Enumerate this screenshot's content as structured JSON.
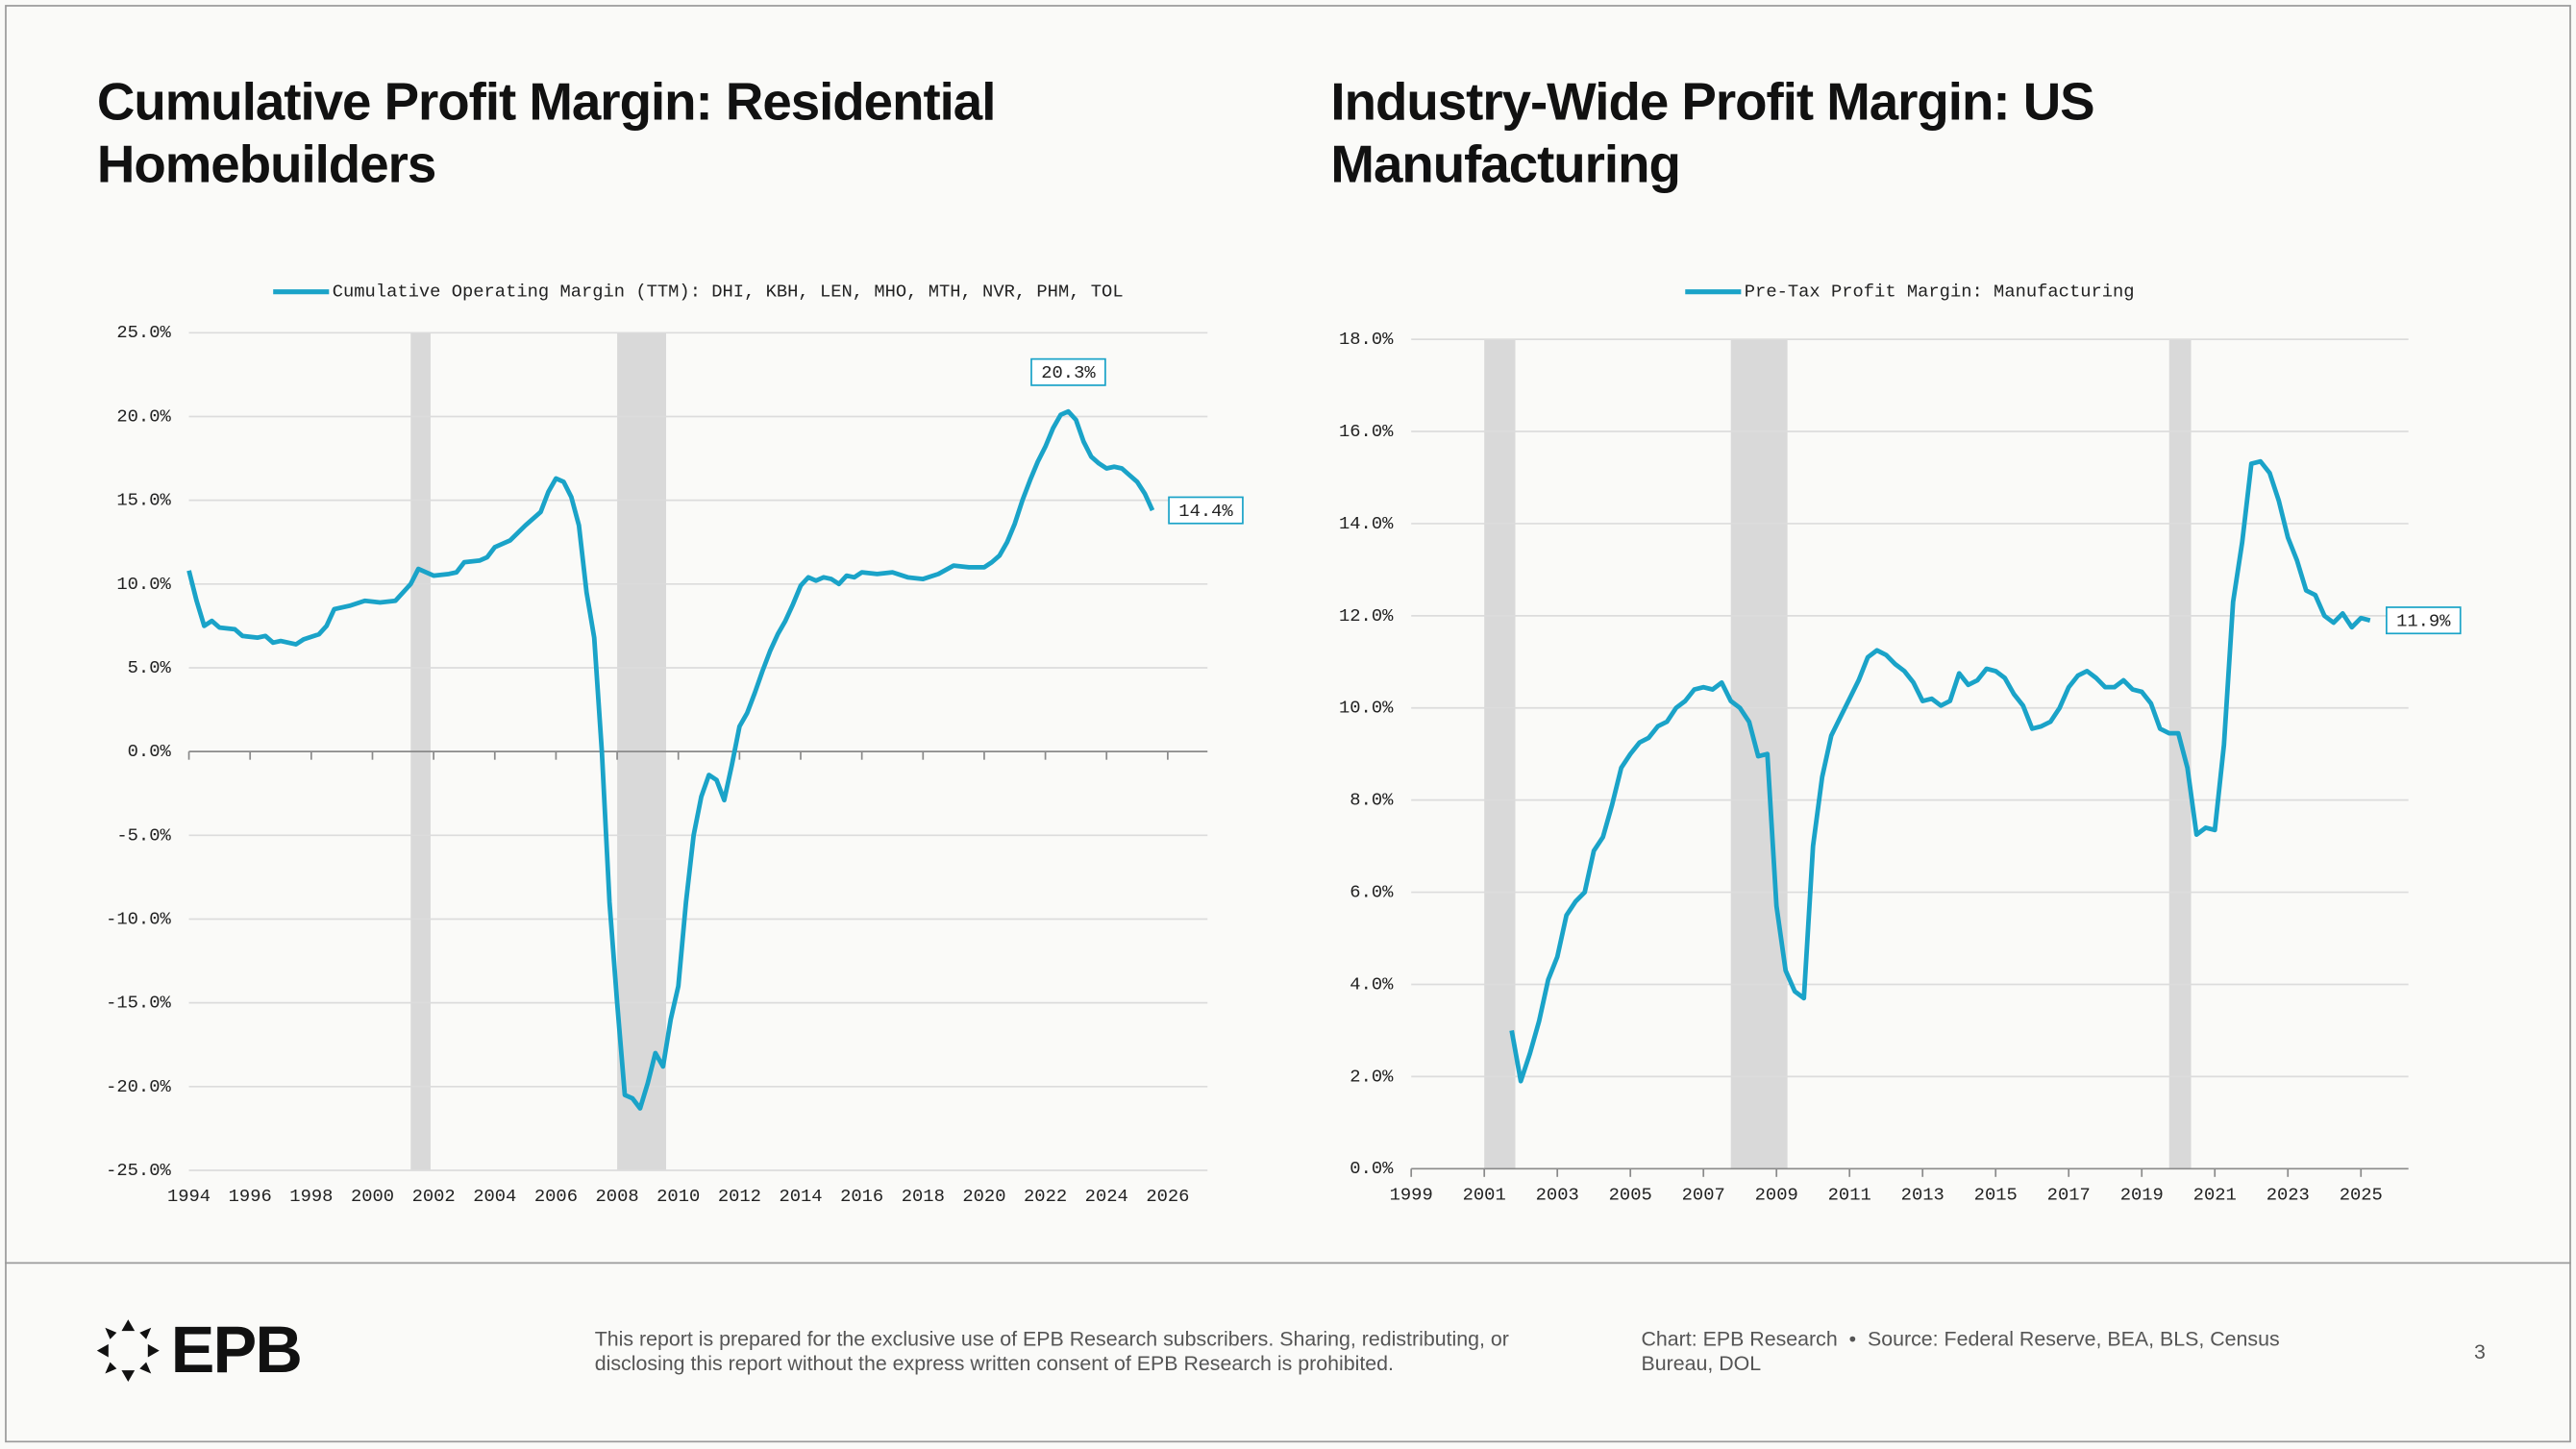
{
  "chart_data": [
    {
      "type": "line",
      "title": "Cumulative Profit Margin: Residential Homebuilders",
      "x": [
        1994,
        1994.25,
        1994.5,
        1994.75,
        1995,
        1995.5,
        1995.75,
        1996.25,
        1996.5,
        1996.75,
        1997,
        1997.5,
        1997.75,
        1998.25,
        1998.5,
        1998.75,
        1999.25,
        1999.75,
        2000.25,
        2000.75,
        2001.25,
        2001.5,
        2002,
        2002.5,
        2002.75,
        2003,
        2003.5,
        2003.75,
        2004,
        2004.5,
        2005,
        2005.5,
        2005.75,
        2006,
        2006.25,
        2006.5,
        2006.75,
        2007,
        2007.25,
        2007.5,
        2007.75,
        2008,
        2008.25,
        2008.5,
        2008.75,
        2009,
        2009.25,
        2009.5,
        2009.75,
        2010,
        2010.25,
        2010.5,
        2010.75,
        2011,
        2011.25,
        2011.5,
        2011.75,
        2012,
        2012.25,
        2012.5,
        2012.75,
        2013,
        2013.25,
        2013.5,
        2013.75,
        2014,
        2014.25,
        2014.5,
        2014.75,
        2015,
        2015.25,
        2015.5,
        2015.75,
        2016,
        2016.5,
        2017,
        2017.5,
        2018,
        2018.5,
        2019,
        2019.5,
        2020,
        2020.25,
        2020.5,
        2020.75,
        2021,
        2021.25,
        2021.5,
        2021.75,
        2022,
        2022.25,
        2022.5,
        2022.75,
        2023,
        2023.25,
        2023.5,
        2023.75,
        2024,
        2024.25,
        2024.5,
        2024.75,
        2025,
        2025.25,
        2025.5
      ],
      "series": [
        {
          "name": "Cumulative Operating Margin (TTM): DHI, KBH, LEN, MHO, MTH, NVR, PHM, TOL",
          "color": "#1aa3c8",
          "values": [
            10.8,
            9.0,
            7.5,
            7.8,
            7.4,
            7.3,
            6.9,
            6.8,
            6.9,
            6.5,
            6.6,
            6.4,
            6.7,
            7.0,
            7.5,
            8.5,
            8.7,
            9.0,
            8.9,
            9.0,
            10.0,
            10.9,
            10.5,
            10.6,
            10.7,
            11.3,
            11.4,
            11.6,
            12.2,
            12.6,
            13.5,
            14.3,
            15.5,
            16.3,
            16.1,
            15.2,
            13.5,
            9.5,
            6.8,
            0,
            -9,
            -15,
            -20.5,
            -20.7,
            -21.3,
            -19.8,
            -18.0,
            -18.8,
            -16.0,
            -14.0,
            -9.0,
            -5.0,
            -2.7,
            -1.4,
            -1.7,
            -2.9,
            -0.8,
            1.5,
            2.3,
            3.5,
            4.8,
            6.0,
            7.0,
            7.8,
            8.8,
            9.9,
            10.4,
            10.2,
            10.4,
            10.3,
            10.0,
            10.5,
            10.4,
            10.7,
            10.6,
            10.7,
            10.4,
            10.3,
            10.6,
            11.1,
            11.0,
            11.0,
            11.3,
            11.7,
            12.5,
            13.6,
            15.0,
            16.2,
            17.3,
            18.2,
            19.3,
            20.1,
            20.3,
            19.8,
            18.5,
            17.6,
            17.2,
            16.9,
            17.0,
            16.9,
            16.5,
            16.1,
            15.4,
            14.4
          ]
        }
      ],
      "recessions": [
        {
          "start": 2001.25,
          "end": 2001.9
        },
        {
          "start": 2008,
          "end": 2009.6
        }
      ],
      "annotations": [
        {
          "text": "20.3%",
          "x": 2022.75,
          "y": 20.3
        },
        {
          "text": "14.4%",
          "x": 2025.5,
          "y": 14.4
        }
      ],
      "xlim": [
        1994,
        2027.3
      ],
      "xticks": [
        1994,
        1996,
        1998,
        2000,
        2002,
        2004,
        2006,
        2008,
        2010,
        2012,
        2014,
        2016,
        2018,
        2020,
        2022,
        2024,
        2026
      ],
      "ylim": [
        -25,
        25
      ],
      "yticks": [
        {
          "value": -25,
          "label": "-25.0%"
        },
        {
          "value": -20,
          "label": "-20.0%"
        },
        {
          "value": -15,
          "label": "-15.0%"
        },
        {
          "value": -10,
          "label": "-10.0%"
        },
        {
          "value": -5,
          "label": "-5.0%"
        },
        {
          "value": 0,
          "label": "0.0%"
        },
        {
          "value": 5,
          "label": "5.0%"
        },
        {
          "value": 10,
          "label": "10.0%"
        },
        {
          "value": 15,
          "label": "15.0%"
        },
        {
          "value": 20,
          "label": "20.0%"
        },
        {
          "value": 25,
          "label": "25.0%"
        }
      ],
      "grid": true,
      "legend": "top"
    },
    {
      "type": "line",
      "title": "Industry-Wide Profit Margin: US Manufacturing",
      "x": [
        2001.75,
        2002,
        2002.25,
        2002.5,
        2002.75,
        2003,
        2003.25,
        2003.5,
        2003.75,
        2004,
        2004.25,
        2004.5,
        2004.75,
        2005,
        2005.25,
        2005.5,
        2005.75,
        2006,
        2006.25,
        2006.5,
        2006.75,
        2007,
        2007.25,
        2007.5,
        2007.75,
        2008,
        2008.25,
        2008.5,
        2008.75,
        2009,
        2009.25,
        2009.5,
        2009.75,
        2010,
        2010.25,
        2010.5,
        2010.75,
        2011,
        2011.25,
        2011.5,
        2011.75,
        2012,
        2012.25,
        2012.5,
        2012.75,
        2013,
        2013.25,
        2013.5,
        2013.75,
        2014,
        2014.25,
        2014.5,
        2014.75,
        2015,
        2015.25,
        2015.5,
        2015.75,
        2016,
        2016.25,
        2016.5,
        2016.75,
        2017,
        2017.25,
        2017.5,
        2017.75,
        2018,
        2018.25,
        2018.5,
        2018.75,
        2019,
        2019.25,
        2019.5,
        2019.75,
        2020,
        2020.25,
        2020.5,
        2020.75,
        2021,
        2021.25,
        2021.5,
        2021.75,
        2022,
        2022.25,
        2022.5,
        2022.75,
        2023,
        2023.25,
        2023.5,
        2023.75,
        2024,
        2024.25,
        2024.5,
        2024.75,
        2025,
        2025.25
      ],
      "series": [
        {
          "name": "Pre-Tax Profit Margin: Manufacturing",
          "color": "#1aa3c8",
          "values": [
            3.0,
            1.9,
            2.5,
            3.2,
            4.1,
            4.6,
            5.5,
            5.8,
            6.0,
            6.9,
            7.2,
            7.9,
            8.7,
            9.0,
            9.25,
            9.35,
            9.6,
            9.7,
            10.0,
            10.15,
            10.4,
            10.45,
            10.4,
            10.55,
            10.15,
            10.0,
            9.7,
            8.95,
            9.0,
            5.7,
            4.3,
            3.85,
            3.7,
            7.0,
            8.5,
            9.4,
            9.8,
            10.2,
            10.6,
            11.1,
            11.25,
            11.15,
            10.95,
            10.8,
            10.55,
            10.15,
            10.2,
            10.05,
            10.15,
            10.75,
            10.5,
            10.6,
            10.85,
            10.8,
            10.65,
            10.3,
            10.05,
            9.55,
            9.6,
            9.7,
            10.0,
            10.45,
            10.7,
            10.8,
            10.65,
            10.45,
            10.45,
            10.6,
            10.4,
            10.35,
            10.1,
            9.55,
            9.45,
            9.45,
            8.7,
            7.25,
            7.4,
            7.35,
            9.2,
            12.3,
            13.6,
            15.3,
            15.35,
            15.1,
            14.5,
            13.7,
            13.2,
            12.55,
            12.45,
            12.0,
            11.85,
            12.05,
            11.75,
            11.95,
            11.9
          ]
        }
      ],
      "recessions": [
        {
          "start": 2001,
          "end": 2001.85
        },
        {
          "start": 2007.75,
          "end": 2009.3
        },
        {
          "start": 2019.75,
          "end": 2020.35
        }
      ],
      "annotations": [
        {
          "text": "11.9%",
          "x": 2025.25,
          "y": 11.9
        }
      ],
      "xlim": [
        1999,
        2026.3
      ],
      "xticks": [
        1999,
        2001,
        2003,
        2005,
        2007,
        2009,
        2011,
        2013,
        2015,
        2017,
        2019,
        2021,
        2023,
        2025
      ],
      "ylim": [
        0,
        18
      ],
      "yticks": [
        {
          "value": 0,
          "label": "0.0%"
        },
        {
          "value": 2,
          "label": "2.0%"
        },
        {
          "value": 4,
          "label": "4.0%"
        },
        {
          "value": 6,
          "label": "6.0%"
        },
        {
          "value": 8,
          "label": "8.0%"
        },
        {
          "value": 10,
          "label": "10.0%"
        },
        {
          "value": 12,
          "label": "12.0%"
        },
        {
          "value": 14,
          "label": "14.0%"
        },
        {
          "value": 16,
          "label": "16.0%"
        },
        {
          "value": 18,
          "label": "18.0%"
        }
      ],
      "grid": true,
      "legend": "top"
    }
  ],
  "footer": {
    "logo": "EPB",
    "disclaimer": "This report is prepared for the exclusive use of EPB Research subscribers. Sharing, redistributing, or disclosing this report without the express written consent of EPB Research is prohibited.",
    "credit": "Chart: EPB Research",
    "source": "Source: Federal Reserve, BEA, BLS, Census Bureau, DOL",
    "page": "3"
  }
}
